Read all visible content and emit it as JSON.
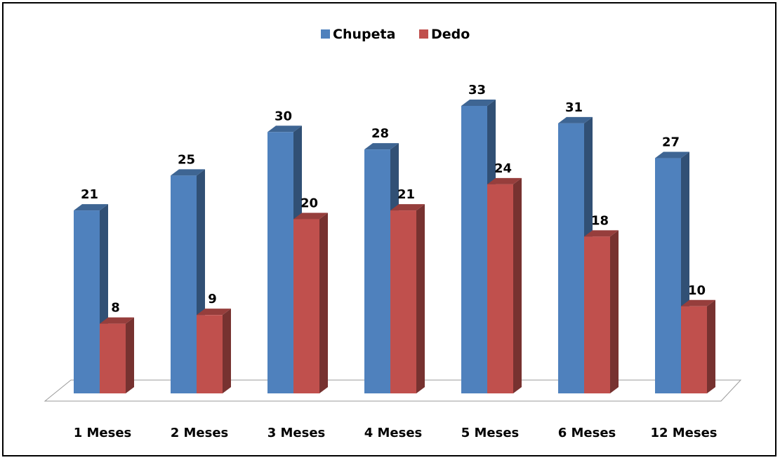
{
  "chart_data": {
    "type": "bar",
    "categories": [
      "1 Meses",
      "2 Meses",
      "3 Meses",
      "4 Meses",
      "5 Meses",
      "6 Meses",
      "12 Meses"
    ],
    "series": [
      {
        "name": "Chupeta",
        "values": [
          21,
          25,
          30,
          28,
          33,
          31,
          27
        ],
        "color": "#4F81BD"
      },
      {
        "name": "Dedo",
        "values": [
          8,
          9,
          20,
          21,
          24,
          18,
          10
        ],
        "color": "#C0504D"
      }
    ],
    "title": "",
    "xlabel": "",
    "ylabel": "",
    "ylim": [
      0,
      35
    ],
    "legend_position": "top",
    "grid": false,
    "bar_style": "3d-clustered"
  }
}
